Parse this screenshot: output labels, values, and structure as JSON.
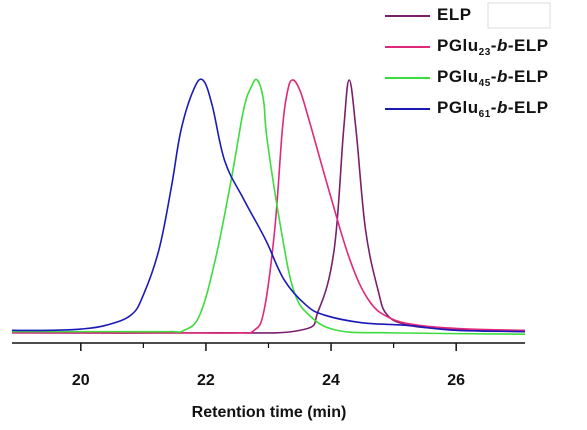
{
  "chart_data": {
    "type": "line",
    "xlabel": "Retention time (min)",
    "xlim": [
      18.9,
      27.1
    ],
    "xticks": [
      20,
      22,
      24,
      26
    ],
    "xminor_ticks": [
      21,
      23,
      25
    ],
    "ylim": [
      -0.04,
      1.0
    ],
    "legend": "top-right",
    "series": [
      {
        "name": "ELP",
        "color": "#7a1f6e",
        "x": [
          18.9,
          22,
          23.5,
          23.8,
          24.05,
          24.2,
          24.29,
          24.4,
          24.55,
          24.75,
          24.9,
          25.25,
          25.9,
          27.1
        ],
        "values": [
          0.0,
          0.0,
          0.01,
          0.09,
          0.33,
          0.8,
          1.0,
          0.8,
          0.41,
          0.17,
          0.07,
          0.03,
          0.015,
          0.005
        ]
      },
      {
        "name": "PGlu23-b-ELP",
        "color": "#e0287a",
        "x": [
          18.9,
          21.5,
          22.5,
          22.77,
          22.93,
          23.1,
          23.22,
          23.3,
          23.38,
          23.5,
          23.65,
          23.97,
          24.3,
          24.6,
          24.93,
          25.4,
          26.2,
          27.1
        ],
        "values": [
          0.0,
          0.0,
          0.0,
          0.01,
          0.09,
          0.41,
          0.8,
          0.95,
          1.0,
          0.96,
          0.84,
          0.56,
          0.29,
          0.13,
          0.06,
          0.03,
          0.015,
          0.01
        ]
      },
      {
        "name": "PGlu45-b-ELP",
        "color": "#3ddc3d",
        "x": [
          18.9,
          20.5,
          21.4,
          21.65,
          21.9,
          22.15,
          22.4,
          22.6,
          22.72,
          22.82,
          22.92,
          22.98,
          23.2,
          23.4,
          23.65,
          24.1,
          25,
          27.1
        ],
        "values": [
          0.005,
          0.005,
          0.005,
          0.01,
          0.07,
          0.29,
          0.6,
          0.88,
          0.97,
          1.0,
          0.92,
          0.76,
          0.41,
          0.17,
          0.07,
          0.01,
          0.0,
          -0.005
        ]
      },
      {
        "name": "PGlu61-b-ELP",
        "color": "#1a1ab8",
        "x": [
          18.9,
          19.5,
          20.0,
          20.4,
          20.8,
          21.0,
          21.25,
          21.45,
          21.6,
          21.8,
          21.95,
          22.1,
          22.3,
          22.6,
          22.95,
          23.25,
          23.6,
          23.9,
          24.5,
          25.2,
          26.0,
          27.1
        ],
        "values": [
          0.01,
          0.01,
          0.015,
          0.03,
          0.07,
          0.15,
          0.33,
          0.58,
          0.8,
          0.96,
          1.0,
          0.9,
          0.68,
          0.53,
          0.37,
          0.21,
          0.11,
          0.07,
          0.04,
          0.03,
          0.01,
          0.005
        ]
      }
    ]
  }
}
